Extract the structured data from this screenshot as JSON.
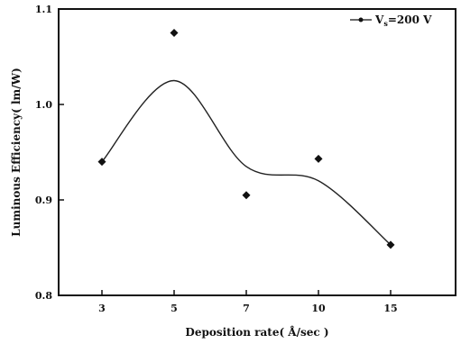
{
  "chart_data": {
    "type": "scatter",
    "title": "",
    "xlabel": "Deposition rate( Å/sec )",
    "ylabel": "Luminous Efficiency( lm/W)",
    "categories": [
      "3",
      "5",
      "7",
      "10",
      "15"
    ],
    "series": [
      {
        "name": "V",
        "name_subscript": "s",
        "name_suffix": "=200 V",
        "color": "#111111",
        "values": [
          0.94,
          1.075,
          0.905,
          0.943,
          0.853
        ]
      }
    ],
    "trend_values": [
      0.94,
      1.025,
      0.935,
      0.92,
      0.853
    ],
    "y_ticks": [
      "0.8",
      "0.9",
      "1.0",
      "1.1"
    ],
    "ylim": [
      0.8,
      1.1
    ],
    "grid": false,
    "legend_position": "top-right",
    "colors": {
      "axis": "#111111",
      "marker": "#111111",
      "background": "#ffffff"
    }
  }
}
